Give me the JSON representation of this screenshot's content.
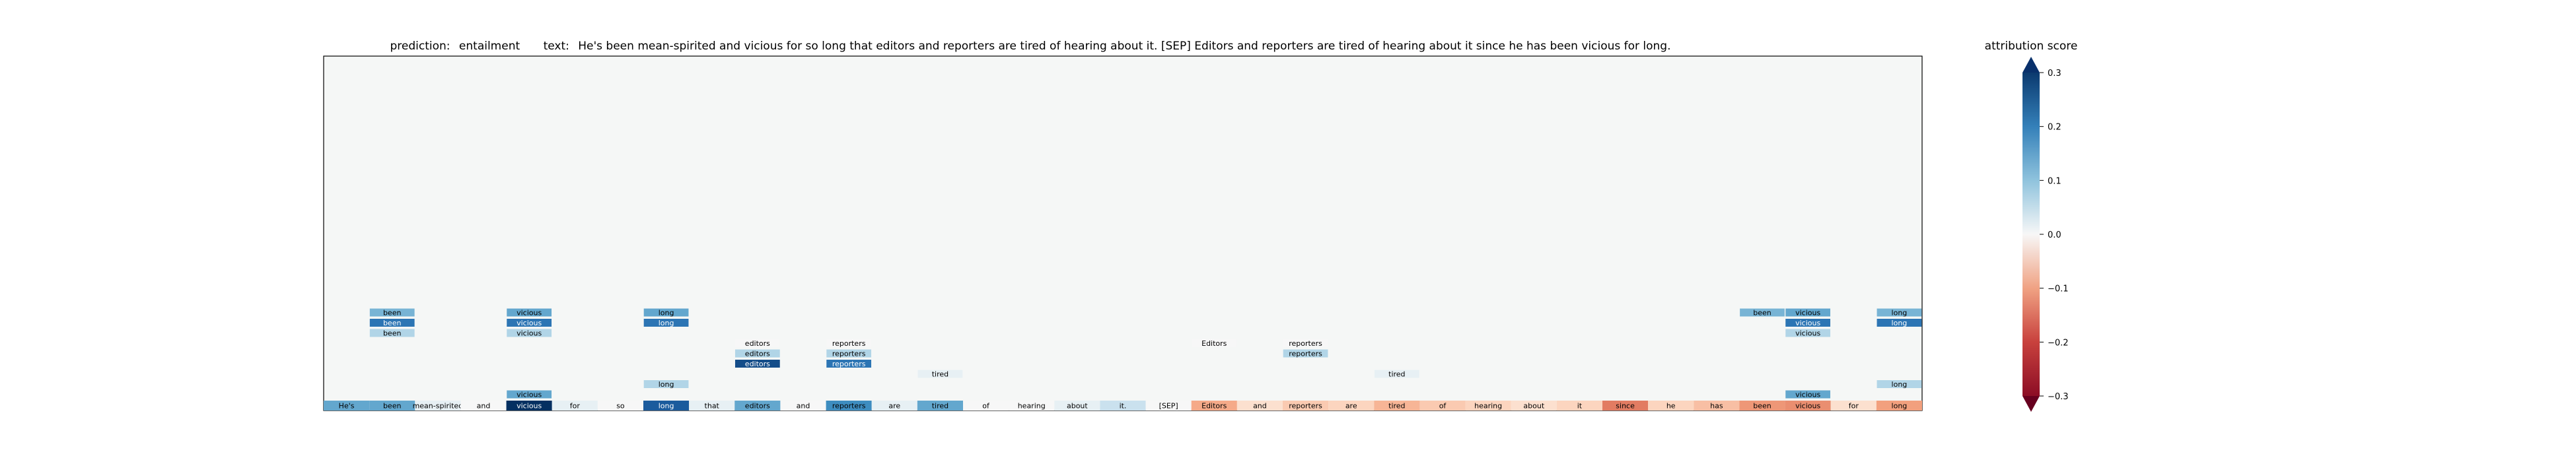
{
  "title": {
    "prediction_label": "prediction:",
    "prediction_value": "entailment",
    "text_label": "text:",
    "text_value": "He's been mean-spirited and vicious for so long that editors and reporters are tired of hearing about it. [SEP] Editors and reporters are tired of hearing about it since he has been vicious for long."
  },
  "colorbar": {
    "title": "attribution score",
    "ticks": [
      "0.3",
      "0.2",
      "0.1",
      "0.0",
      "−0.1",
      "−0.2",
      "−0.3"
    ]
  },
  "chart_data": {
    "type": "heatmap",
    "title": "prediction: entailment   text: He's been mean-spirited and vicious for so long that editors and reporters are tired of hearing about it. [SEP] Editors and reporters are tired of hearing about it since he has been vicious for long.",
    "vmin": -0.3,
    "vmax": 0.3,
    "colormap": "RdBu",
    "grid": false,
    "legend": "colorbar right",
    "tokens": [
      {
        "text": "He's",
        "score": 0.12
      },
      {
        "text": "been",
        "score": 0.12
      },
      {
        "text": "mean-spirited",
        "score": 0.01
      },
      {
        "text": "and",
        "score": 0.0
      },
      {
        "text": "vicious",
        "score": 0.3
      },
      {
        "text": "for",
        "score": 0.01
      },
      {
        "text": "so",
        "score": 0.0
      },
      {
        "text": "long",
        "score": 0.24
      },
      {
        "text": "that",
        "score": 0.01
      },
      {
        "text": "editors",
        "score": 0.12
      },
      {
        "text": "and",
        "score": 0.0
      },
      {
        "text": "reporters",
        "score": 0.16
      },
      {
        "text": "are",
        "score": 0.01
      },
      {
        "text": "tired",
        "score": 0.12
      },
      {
        "text": "of",
        "score": 0.0
      },
      {
        "text": "hearing",
        "score": 0.0
      },
      {
        "text": "about",
        "score": 0.01
      },
      {
        "text": "it.",
        "score": 0.03
      },
      {
        "text": "[SEP]",
        "score": 0.0
      },
      {
        "text": "Editors",
        "score": -0.07
      },
      {
        "text": "and",
        "score": -0.02
      },
      {
        "text": "reporters",
        "score": -0.04
      },
      {
        "text": "are",
        "score": -0.03
      },
      {
        "text": "tired",
        "score": -0.06
      },
      {
        "text": "of",
        "score": -0.04
      },
      {
        "text": "hearing",
        "score": -0.03
      },
      {
        "text": "about",
        "score": -0.02
      },
      {
        "text": "it",
        "score": -0.03
      },
      {
        "text": "since",
        "score": -0.12
      },
      {
        "text": "he",
        "score": -0.03
      },
      {
        "text": "has",
        "score": -0.05
      },
      {
        "text": "been",
        "score": -0.09
      },
      {
        "text": "vicious",
        "score": -0.1
      },
      {
        "text": "for",
        "score": -0.02
      },
      {
        "text": "long",
        "score": -0.08
      }
    ],
    "stacks": [
      {
        "col": 1,
        "items": [
          {
            "text": "been",
            "score": 0.1,
            "row": 9
          },
          {
            "text": "been",
            "score": 0.2,
            "row": 8
          },
          {
            "text": "been",
            "score": 0.05,
            "row": 7
          }
        ]
      },
      {
        "col": 4,
        "items": [
          {
            "text": "vicious",
            "score": 0.12,
            "row": 9
          },
          {
            "text": "vicious",
            "score": 0.2,
            "row": 8
          },
          {
            "text": "vicious",
            "score": 0.05,
            "row": 7
          },
          {
            "text": "vicious",
            "score": 0.12,
            "row": 1
          }
        ]
      },
      {
        "col": 7,
        "items": [
          {
            "text": "long",
            "score": 0.12,
            "row": 9
          },
          {
            "text": "long",
            "score": 0.2,
            "row": 8
          },
          {
            "text": "long",
            "score": 0.05,
            "row": 2
          }
        ]
      },
      {
        "col": 9,
        "items": [
          {
            "text": "editors",
            "score": 0.0,
            "row": 6
          },
          {
            "text": "editors",
            "score": 0.05,
            "row": 5
          },
          {
            "text": "editors",
            "score": 0.26,
            "row": 4
          }
        ]
      },
      {
        "col": 11,
        "items": [
          {
            "text": "reporters",
            "score": 0.0,
            "row": 6
          },
          {
            "text": "reporters",
            "score": 0.05,
            "row": 5
          },
          {
            "text": "reporters",
            "score": 0.2,
            "row": 4
          }
        ]
      },
      {
        "col": 13,
        "items": [
          {
            "text": "tired",
            "score": 0.01,
            "row": 3
          }
        ]
      },
      {
        "col": 19,
        "items": [
          {
            "text": "Editors",
            "score": 0.0,
            "row": 6
          }
        ]
      },
      {
        "col": 21,
        "items": [
          {
            "text": "reporters",
            "score": 0.0,
            "row": 6
          },
          {
            "text": "reporters",
            "score": 0.05,
            "row": 5
          }
        ]
      },
      {
        "col": 23,
        "items": [
          {
            "text": "tired",
            "score": 0.01,
            "row": 3
          }
        ]
      },
      {
        "col": 31,
        "items": [
          {
            "text": "been",
            "score": 0.1,
            "row": 9
          }
        ]
      },
      {
        "col": 32,
        "items": [
          {
            "text": "vicious",
            "score": 0.12,
            "row": 9
          },
          {
            "text": "vicious",
            "score": 0.2,
            "row": 8
          },
          {
            "text": "vicious",
            "score": 0.05,
            "row": 7
          },
          {
            "text": "vicious",
            "score": 0.12,
            "row": 1
          }
        ]
      },
      {
        "col": 34,
        "items": [
          {
            "text": "long",
            "score": 0.1,
            "row": 9
          },
          {
            "text": "long",
            "score": 0.2,
            "row": 8
          },
          {
            "text": "long",
            "score": 0.05,
            "row": 2
          }
        ]
      }
    ]
  }
}
